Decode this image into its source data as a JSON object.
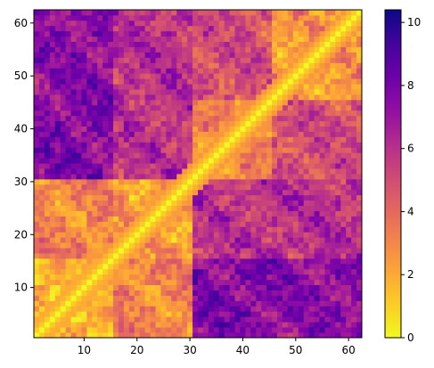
{
  "chart_data": {
    "type": "heatmap",
    "title": "",
    "xlabel": "",
    "ylabel": "",
    "n": 62,
    "xlim": [
      1,
      62
    ],
    "ylim": [
      1,
      62
    ],
    "x_ticks": [
      10,
      20,
      30,
      40,
      50,
      60
    ],
    "y_ticks": [
      10,
      20,
      30,
      40,
      50,
      60
    ],
    "x_tick_labels": [
      "10",
      "20",
      "30",
      "40",
      "50",
      "60"
    ],
    "y_tick_labels": [
      "10",
      "20",
      "30",
      "40",
      "50",
      "60"
    ],
    "colormap": "plasma_r",
    "color_range": [
      0,
      10.4
    ],
    "colorbar": {
      "position": "right",
      "ticks": [
        0,
        2,
        4,
        6,
        8,
        10
      ],
      "tick_labels": [
        "0",
        "2",
        "4",
        "6",
        "8",
        "10"
      ]
    },
    "symmetric": true,
    "diagonal_value": 0,
    "grid": false,
    "region_estimates": [
      {
        "rows": [
          1,
          15
        ],
        "cols": [
          1,
          15
        ],
        "value": 2
      },
      {
        "rows": [
          1,
          15
        ],
        "cols": [
          16,
          30
        ],
        "value": 3.2
      },
      {
        "rows": [
          1,
          15
        ],
        "cols": [
          31,
          45
        ],
        "value": 7.6
      },
      {
        "rows": [
          1,
          15
        ],
        "cols": [
          46,
          62
        ],
        "value": 7.4
      },
      {
        "rows": [
          16,
          30
        ],
        "cols": [
          16,
          30
        ],
        "value": 2.4
      },
      {
        "rows": [
          16,
          30
        ],
        "cols": [
          31,
          45
        ],
        "value": 5.8
      },
      {
        "rows": [
          16,
          30
        ],
        "cols": [
          46,
          62
        ],
        "value": 6
      },
      {
        "rows": [
          31,
          45
        ],
        "cols": [
          31,
          45
        ],
        "value": 3
      },
      {
        "rows": [
          31,
          45
        ],
        "cols": [
          46,
          62
        ],
        "value": 5
      },
      {
        "rows": [
          46,
          62
        ],
        "cols": [
          46,
          62
        ],
        "value": 2.6
      }
    ]
  }
}
